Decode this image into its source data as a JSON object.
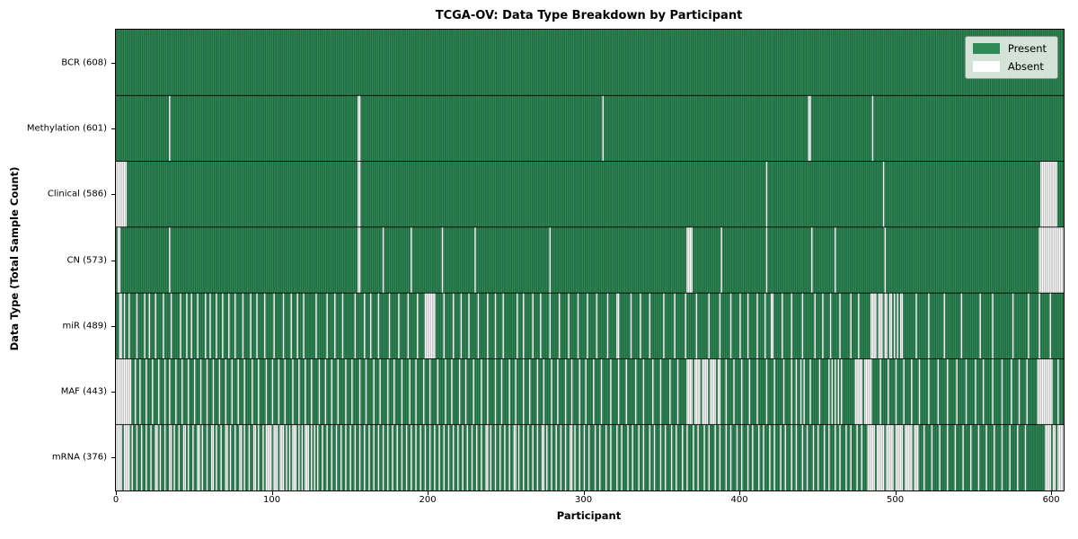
{
  "chart_data": {
    "type": "heatmap",
    "title": "TCGA-OV: Data Type Breakdown by Participant",
    "xlabel": "Participant",
    "ylabel": "Data Type (Total Sample Count)",
    "legend_labels": [
      "Present",
      "Absent"
    ],
    "legend_position": "upper right",
    "n_participants": 608,
    "x_range": [
      0,
      608
    ],
    "x_ticks": [
      0,
      100,
      200,
      300,
      400,
      500,
      600
    ],
    "grid": false,
    "colors": {
      "present": "#2e8b57",
      "absent": "#ffffff",
      "cell_edge": "rgba(0,0,0,0.42)",
      "row_separator": "#000000",
      "legend_bg": "rgba(250,250,248,0.82)"
    },
    "rows": [
      {
        "name": "BCR",
        "label": "BCR (608)",
        "present_count": 608,
        "absent_count": 0,
        "absent": []
      },
      {
        "name": "Methylation",
        "label": "Methylation (601)",
        "present_count": 601,
        "absent_count": 7,
        "absent": [
          34,
          [
            155,
            156
          ],
          312,
          [
            444,
            445
          ],
          485
        ]
      },
      {
        "name": "Clinical",
        "label": "Clinical (586)",
        "present_count": 586,
        "absent_count": 22,
        "absent": [
          [
            0,
            6
          ],
          [
            155,
            156
          ],
          417,
          492,
          [
            593,
            603
          ]
        ]
      },
      {
        "name": "CN",
        "label": "CN (573)",
        "present_count": 573,
        "absent_count": 35,
        "absent": [
          [
            1,
            2
          ],
          34,
          [
            155,
            156
          ],
          171,
          189,
          209,
          230,
          278,
          [
            366,
            369
          ],
          388,
          417,
          446,
          461,
          493,
          [
            592,
            607
          ]
        ]
      },
      {
        "name": "miR",
        "label": "miR (489)",
        "present_count": 489,
        "absent_count": 119,
        "absent": [
          [
            2,
            3
          ],
          5,
          8,
          13,
          18,
          21,
          25,
          30,
          35,
          41,
          45,
          48,
          52,
          57,
          60,
          64,
          68,
          72,
          76,
          81,
          86,
          90,
          95,
          101,
          107,
          112,
          116,
          120,
          128,
          135,
          140,
          145,
          153,
          159,
          163,
          168,
          175,
          181,
          187,
          193,
          [
            198,
            204
          ],
          210,
          216,
          221,
          226,
          232,
          238,
          243,
          248,
          257,
          261,
          267,
          272,
          278,
          284,
          290,
          296,
          302,
          308,
          315,
          [
            321,
            322
          ],
          330,
          336,
          342,
          351,
          358,
          365,
          372,
          380,
          387,
          394,
          400,
          405,
          411,
          416,
          [
            420,
            421
          ],
          427,
          433,
          440,
          448,
          453,
          458,
          464,
          471,
          476,
          [
            484,
            487
          ],
          [
            489,
            491
          ],
          [
            493,
            494
          ],
          [
            496,
            497
          ],
          499,
          501,
          [
            503,
            504
          ],
          513,
          521,
          531,
          542,
          554,
          562,
          575,
          585,
          592,
          599
        ]
      },
      {
        "name": "MAF",
        "label": "MAF (443)",
        "present_count": 443,
        "absent_count": 165,
        "absent": [
          [
            0,
            9
          ],
          12,
          15,
          19,
          23,
          27,
          31,
          34,
          38,
          42,
          46,
          50,
          54,
          58,
          62,
          66,
          70,
          74,
          78,
          82,
          87,
          91,
          96,
          100,
          104,
          108,
          113,
          117,
          121,
          125,
          130,
          134,
          138,
          142,
          147,
          151,
          156,
          160,
          165,
          169,
          174,
          178,
          183,
          188,
          192,
          197,
          201,
          206,
          211,
          215,
          220,
          224,
          229,
          234,
          238,
          243,
          247,
          252,
          256,
          261,
          265,
          270,
          274,
          279,
          283,
          288,
          292,
          297,
          301,
          306,
          311,
          317,
          322,
          327,
          333,
          338,
          344,
          349,
          355,
          360,
          [
            366,
            369
          ],
          [
            371,
            374
          ],
          [
            376,
            379
          ],
          [
            381,
            384
          ],
          [
            386,
            387
          ],
          391,
          396,
          401,
          406,
          411,
          417,
          422,
          428,
          433,
          436,
          439,
          441,
          445,
          451,
          457,
          459,
          461,
          463,
          465,
          [
            474,
            478
          ],
          [
            480,
            484
          ],
          490,
          495,
          500,
          505,
          510,
          515,
          521,
          527,
          533,
          539,
          545,
          551,
          556,
          562,
          568,
          574,
          579,
          584,
          [
            591,
            600
          ],
          604
        ]
      },
      {
        "name": "mRNA",
        "label": "mRNA (376)",
        "present_count": 376,
        "absent_count": 232,
        "absent": [
          [
            0,
            3
          ],
          [
            5,
            8
          ],
          10,
          13,
          16,
          19,
          22,
          25,
          26,
          28,
          31,
          34,
          35,
          37,
          40,
          43,
          44,
          46,
          49,
          52,
          53,
          55,
          58,
          61,
          62,
          64,
          67,
          70,
          71,
          73,
          76,
          79,
          80,
          82,
          85,
          88,
          89,
          91,
          94,
          [
            96,
            99
          ],
          [
            101,
            103
          ],
          [
            105,
            107
          ],
          109,
          111,
          [
            113,
            115
          ],
          117,
          119,
          [
            121,
            123
          ],
          125,
          127,
          129,
          132,
          135,
          138,
          141,
          144,
          147,
          150,
          153,
          156,
          159,
          162,
          165,
          168,
          171,
          174,
          177,
          180,
          183,
          186,
          189,
          192,
          195,
          198,
          201,
          204,
          207,
          210,
          213,
          216,
          219,
          222,
          225,
          228,
          231,
          234,
          237,
          238,
          240,
          243,
          246,
          249,
          252,
          255,
          256,
          258,
          261,
          264,
          267,
          270,
          273,
          274,
          276,
          279,
          282,
          285,
          288,
          291,
          292,
          294,
          297,
          300,
          303,
          307,
          310,
          314,
          317,
          321,
          324,
          328,
          331,
          335,
          338,
          342,
          345,
          349,
          352,
          356,
          359,
          363,
          366,
          370,
          373,
          377,
          380,
          384,
          387,
          391,
          394,
          398,
          401,
          405,
          408,
          412,
          415,
          419,
          422,
          426,
          429,
          433,
          436,
          440,
          443,
          447,
          450,
          454,
          457,
          461,
          464,
          468,
          471,
          475,
          478,
          [
            482,
            486
          ],
          [
            488,
            492
          ],
          [
            494,
            498
          ],
          [
            500,
            504
          ],
          [
            506,
            510
          ],
          [
            512,
            514
          ],
          518,
          523,
          528,
          533,
          538,
          543,
          548,
          553,
          558,
          563,
          568,
          573,
          578,
          583,
          [
            596,
            599
          ],
          [
            601,
            602
          ],
          [
            604,
            607
          ]
        ]
      }
    ]
  }
}
